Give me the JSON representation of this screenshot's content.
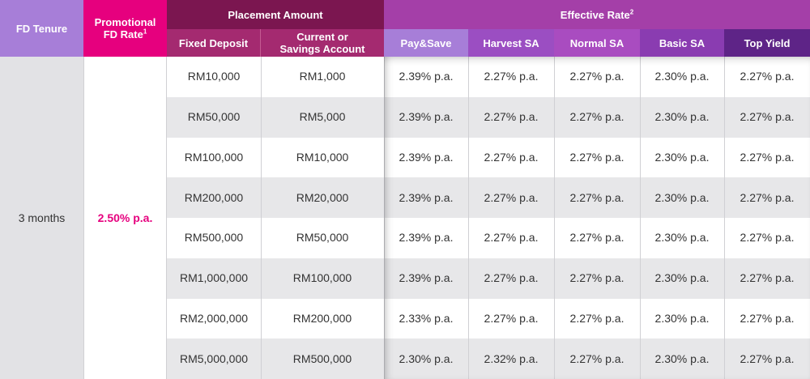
{
  "header": {
    "fd_tenure": "FD Tenure",
    "promo_rate_line1": "Promotional",
    "promo_rate_line2": "FD Rate",
    "promo_rate_sup": "1",
    "placement_amount": "Placement Amount",
    "fixed_deposit": "Fixed Deposit",
    "current_line1": "Current or",
    "current_line2": "Savings Account",
    "effective_rate": "Effective Rate",
    "effective_rate_sup": "2",
    "accounts": [
      "Pay&Save",
      "Harvest SA",
      "Normal SA",
      "Basic SA",
      "Top Yield"
    ]
  },
  "colors": {
    "tenure_header": "#a77ed8",
    "promo_header": "#e6007e",
    "placement_header": "#7b1650",
    "placement_sub": "#a42a70",
    "effective_header": "#a43fa8",
    "accounts": [
      "#a77ed8",
      "#9b4ec2",
      "#a94cc0",
      "#8a3cb1",
      "#5e2487"
    ],
    "promo_rate_text": "#e6007e",
    "tenure_column": "#e2e2e5"
  },
  "tenure": "3 months",
  "promo_rate": "2.50% p.a.",
  "rows": [
    {
      "fd": "RM10,000",
      "casa": "RM1,000",
      "rates": [
        "2.39% p.a.",
        "2.27% p.a.",
        "2.27% p.a.",
        "2.30% p.a.",
        "2.27% p.a."
      ]
    },
    {
      "fd": "RM50,000",
      "casa": "RM5,000",
      "rates": [
        "2.39% p.a.",
        "2.27% p.a.",
        "2.27% p.a.",
        "2.30% p.a.",
        "2.27% p.a."
      ]
    },
    {
      "fd": "RM100,000",
      "casa": "RM10,000",
      "rates": [
        "2.39% p.a.",
        "2.27% p.a.",
        "2.27% p.a.",
        "2.30% p.a.",
        "2.27% p.a."
      ]
    },
    {
      "fd": "RM200,000",
      "casa": "RM20,000",
      "rates": [
        "2.39% p.a.",
        "2.27% p.a.",
        "2.27% p.a.",
        "2.30% p.a.",
        "2.27% p.a."
      ]
    },
    {
      "fd": "RM500,000",
      "casa": "RM50,000",
      "rates": [
        "2.39% p.a.",
        "2.27% p.a.",
        "2.27% p.a.",
        "2.30% p.a.",
        "2.27% p.a."
      ]
    },
    {
      "fd": "RM1,000,000",
      "casa": "RM100,000",
      "rates": [
        "2.39% p.a.",
        "2.27% p.a.",
        "2.27% p.a.",
        "2.30% p.a.",
        "2.27% p.a."
      ]
    },
    {
      "fd": "RM2,000,000",
      "casa": "RM200,000",
      "rates": [
        "2.33% p.a.",
        "2.27% p.a.",
        "2.27% p.a.",
        "2.30% p.a.",
        "2.27% p.a."
      ]
    },
    {
      "fd": "RM5,000,000",
      "casa": "RM500,000",
      "rates": [
        "2.30% p.a.",
        "2.32% p.a.",
        "2.27% p.a.",
        "2.30% p.a.",
        "2.27% p.a."
      ]
    }
  ]
}
